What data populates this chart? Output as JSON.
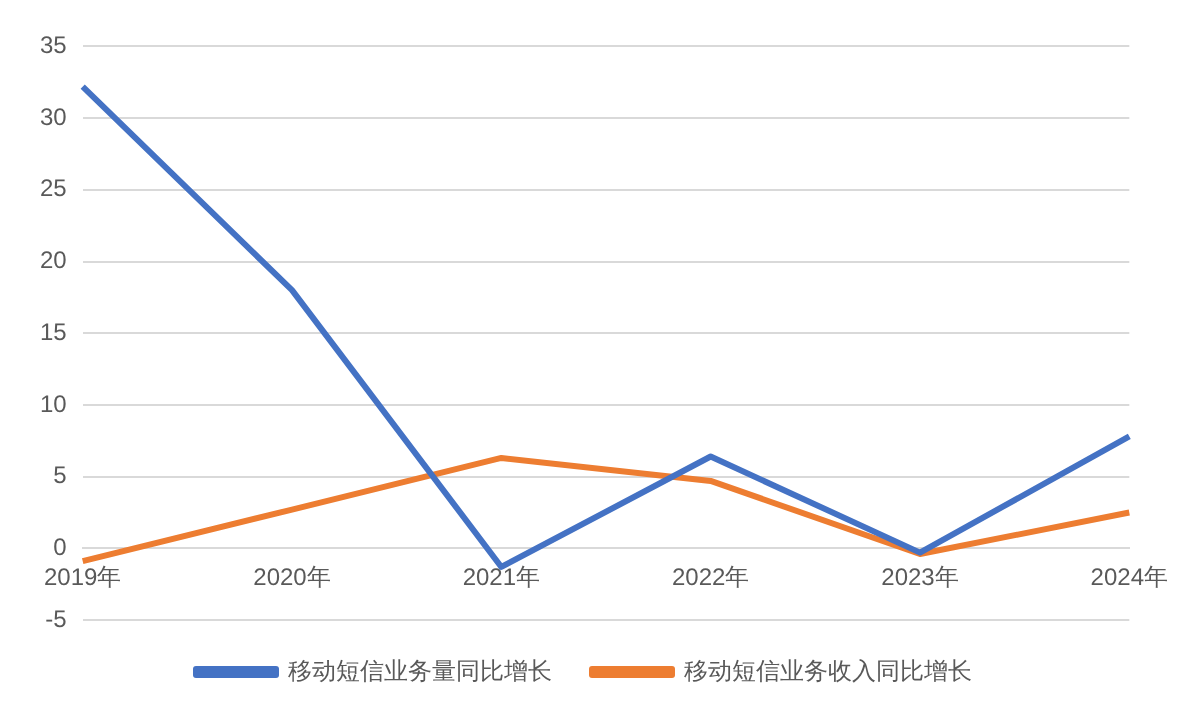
{
  "chart_data": {
    "type": "line",
    "categories": [
      "2019年",
      "2020年",
      "2021年",
      "2022年",
      "2023年",
      "2024年"
    ],
    "series": [
      {
        "name": "移动短信业务量同比增长",
        "color": "#4472c4",
        "values": [
          32.2,
          18,
          -1.3,
          6.4,
          -0.3,
          7.8
        ]
      },
      {
        "name": "移动短信业务收入同比增长",
        "color": "#ed7d31",
        "values": [
          -0.9,
          2.7,
          6.3,
          4.7,
          -0.4,
          2.5
        ]
      }
    ],
    "ylim": [
      -5,
      35
    ],
    "yticks": [
      -5,
      0,
      5,
      10,
      15,
      20,
      25,
      30,
      35
    ],
    "grid": "y",
    "legend": "bottom",
    "marker": "none",
    "line_style": "solid"
  }
}
